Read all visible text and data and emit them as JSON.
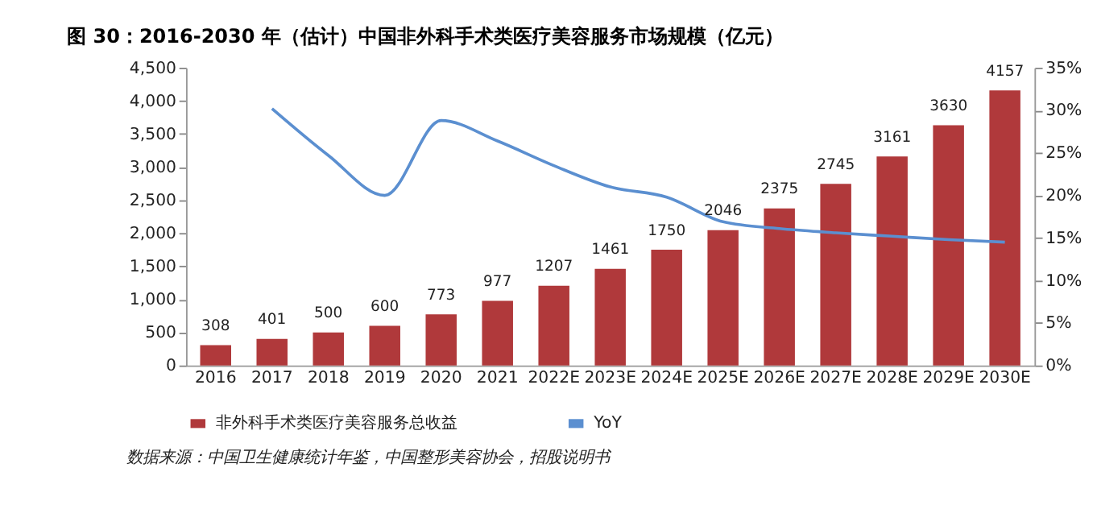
{
  "chart_data": {
    "type": "bar",
    "title": "图 30：2016-2030 年（估计）中国非外科手术类医疗美容服务市场规模（亿元）",
    "categories": [
      "2016",
      "2017",
      "2018",
      "2019",
      "2020",
      "2021",
      "2022E",
      "2023E",
      "2024E",
      "2025E",
      "2026E",
      "2027E",
      "2028E",
      "2029E",
      "2030E"
    ],
    "series": [
      {
        "name": "非外科手术类医疗美容服务总收益",
        "color": "#b0393b",
        "values": [
          308,
          401,
          500,
          600,
          773,
          977,
          1207,
          1461,
          1750,
          2046,
          2375,
          2745,
          3161,
          3630,
          4157
        ],
        "value_labels": [
          "308",
          "401",
          "500",
          "600",
          "773",
          "977",
          "1207",
          "1461",
          "1750",
          "2046",
          "2375",
          "2745",
          "3161",
          "3630",
          "4157"
        ]
      },
      {
        "name": "YoY",
        "type": "line",
        "axis": "y2",
        "color": "#5b8fd0",
        "values": [
          null,
          30.2,
          24.7,
          20.0,
          28.8,
          26.4,
          23.5,
          21.0,
          19.8,
          16.9,
          16.1,
          15.6,
          15.2,
          14.8,
          14.5
        ]
      }
    ],
    "ylim": [
      0,
      4500
    ],
    "yticks": [
      0,
      {
        "value": 500,
        "label": "500"
      },
      {
        "value": 1000,
        "label": "1,000"
      },
      {
        "value": 1500,
        "label": "1,500"
      },
      {
        "value": 2000,
        "label": "2,000"
      },
      {
        "value": 2500,
        "label": "2,500"
      },
      {
        "value": 3000,
        "label": "3,000"
      },
      {
        "value": 3500,
        "label": "3,500"
      },
      {
        "value": 4000,
        "label": "4,000"
      },
      {
        "value": 4500,
        "label": "4,500"
      }
    ],
    "y2lim": [
      0,
      35
    ],
    "y2ticks": [
      {
        "value": 0,
        "label": "0%"
      },
      {
        "value": 5,
        "label": "5%"
      },
      {
        "value": 10,
        "label": "10%"
      },
      {
        "value": 15,
        "label": "15%"
      },
      {
        "value": 20,
        "label": "20%"
      },
      {
        "value": 25,
        "label": "25%"
      },
      {
        "value": 30,
        "label": "30%"
      },
      {
        "value": 35,
        "label": "35%"
      }
    ],
    "grid": false,
    "legend": "bottom",
    "marker": "none",
    "line_style": "solid",
    "annotations": [
      "数据来源：中国卫生健康统计年鉴，中国整形美容协会，招股说明书"
    ]
  }
}
